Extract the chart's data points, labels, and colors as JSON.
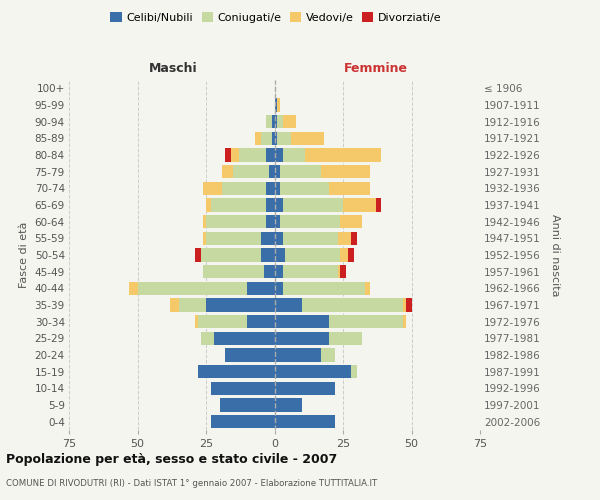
{
  "age_groups": [
    "0-4",
    "5-9",
    "10-14",
    "15-19",
    "20-24",
    "25-29",
    "30-34",
    "35-39",
    "40-44",
    "45-49",
    "50-54",
    "55-59",
    "60-64",
    "65-69",
    "70-74",
    "75-79",
    "80-84",
    "85-89",
    "90-94",
    "95-99",
    "100+"
  ],
  "birth_years": [
    "2002-2006",
    "1997-2001",
    "1992-1996",
    "1987-1991",
    "1982-1986",
    "1977-1981",
    "1972-1976",
    "1967-1971",
    "1962-1966",
    "1957-1961",
    "1952-1956",
    "1947-1951",
    "1942-1946",
    "1937-1941",
    "1932-1936",
    "1927-1931",
    "1922-1926",
    "1917-1921",
    "1912-1916",
    "1907-1911",
    "≤ 1906"
  ],
  "male": {
    "celibi": [
      23,
      20,
      23,
      28,
      18,
      22,
      10,
      25,
      10,
      4,
      5,
      5,
      3,
      3,
      3,
      2,
      3,
      1,
      1,
      0,
      0
    ],
    "coniugati": [
      0,
      0,
      0,
      0,
      0,
      5,
      18,
      10,
      40,
      22,
      22,
      20,
      22,
      20,
      16,
      13,
      10,
      4,
      2,
      0,
      0
    ],
    "vedovi": [
      0,
      0,
      0,
      0,
      0,
      0,
      1,
      3,
      3,
      0,
      0,
      1,
      1,
      2,
      7,
      4,
      3,
      2,
      0,
      0,
      0
    ],
    "divorziati": [
      0,
      0,
      0,
      0,
      0,
      0,
      0,
      0,
      0,
      0,
      2,
      0,
      0,
      0,
      0,
      0,
      2,
      0,
      0,
      0,
      0
    ]
  },
  "female": {
    "nubili": [
      22,
      10,
      22,
      28,
      17,
      20,
      20,
      10,
      3,
      3,
      4,
      3,
      2,
      3,
      2,
      2,
      3,
      1,
      1,
      1,
      0
    ],
    "coniugate": [
      0,
      0,
      0,
      2,
      5,
      12,
      27,
      37,
      30,
      20,
      20,
      20,
      22,
      22,
      18,
      15,
      8,
      5,
      2,
      0,
      0
    ],
    "vedove": [
      0,
      0,
      0,
      0,
      0,
      0,
      1,
      1,
      2,
      1,
      3,
      5,
      8,
      12,
      15,
      18,
      28,
      12,
      5,
      1,
      0
    ],
    "divorziate": [
      0,
      0,
      0,
      0,
      0,
      0,
      0,
      2,
      0,
      2,
      2,
      2,
      0,
      2,
      0,
      0,
      0,
      0,
      0,
      0,
      0
    ]
  },
  "colors": {
    "celibi": "#3a6ea8",
    "coniugati": "#c5d9a0",
    "vedovi": "#f5c96a",
    "divorziati": "#cc2020"
  },
  "title": "Popolazione per età, sesso e stato civile - 2007",
  "subtitle": "COMUNE DI RIVODUTRI (RI) - Dati ISTAT 1° gennaio 2007 - Elaborazione TUTTITALIA.IT",
  "xlabel_left": "Maschi",
  "xlabel_right": "Femmine",
  "ylabel_left": "Fasce di età",
  "ylabel_right": "Anni di nascita",
  "xlim": 75,
  "background_color": "#f5f5f0",
  "grid_color": "#cccccc"
}
